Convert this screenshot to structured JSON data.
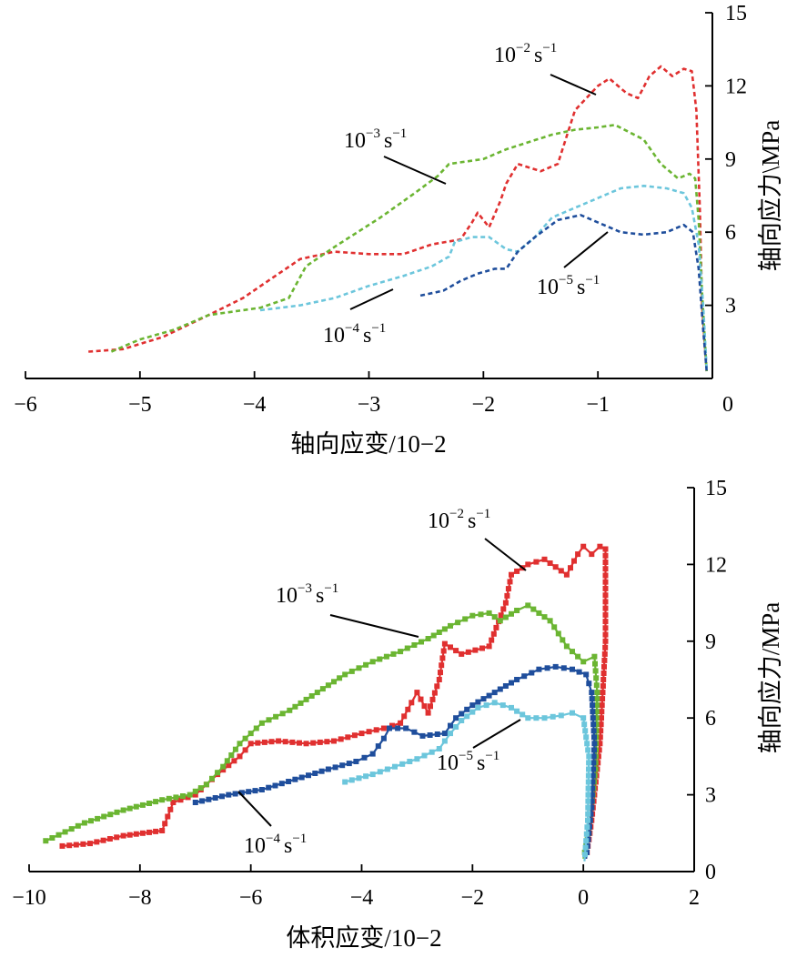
{
  "chart_data": [
    {
      "type": "line",
      "xlabel": "轴向应变/10−2",
      "ylabel": "轴向应力\\MPa",
      "xlim": [
        -6,
        0
      ],
      "ylim": [
        0,
        15
      ],
      "x_ticks": [
        "−6",
        "−5",
        "−4",
        "−3",
        "−2",
        "−1",
        "0"
      ],
      "y_ticks": [
        "3",
        "6",
        "9",
        "12",
        "15"
      ],
      "x_tick_values": [
        -6,
        -5,
        -4,
        -3,
        -2,
        -1,
        0
      ],
      "y_tick_values": [
        3,
        6,
        9,
        12,
        15
      ],
      "y_axis_position": "right",
      "line_style": "dashed",
      "series": [
        {
          "name": "10−2 s−1",
          "base": "10",
          "exp": "−2",
          "unit": "s",
          "unit_exp": "−1",
          "color": "#e03030",
          "points": [
            [
              -5.45,
              1.1
            ],
            [
              -5.15,
              1.2
            ],
            [
              -4.8,
              1.7
            ],
            [
              -4.4,
              2.6
            ],
            [
              -4.1,
              3.3
            ],
            [
              -3.85,
              4.1
            ],
            [
              -3.6,
              4.9
            ],
            [
              -3.3,
              5.2
            ],
            [
              -3.0,
              5.1
            ],
            [
              -2.7,
              5.1
            ],
            [
              -2.45,
              5.5
            ],
            [
              -2.2,
              5.7
            ],
            [
              -2.1,
              6.4
            ],
            [
              -2.05,
              6.8
            ],
            [
              -1.95,
              6.2
            ],
            [
              -1.85,
              7.3
            ],
            [
              -1.8,
              8.0
            ],
            [
              -1.7,
              8.8
            ],
            [
              -1.5,
              8.5
            ],
            [
              -1.35,
              8.8
            ],
            [
              -1.2,
              11.0
            ],
            [
              -1.0,
              12.0
            ],
            [
              -0.9,
              12.3
            ],
            [
              -0.75,
              11.7
            ],
            [
              -0.65,
              11.5
            ],
            [
              -0.55,
              12.4
            ],
            [
              -0.45,
              12.8
            ],
            [
              -0.35,
              12.4
            ],
            [
              -0.25,
              12.7
            ],
            [
              -0.18,
              12.6
            ],
            [
              -0.14,
              11.0
            ],
            [
              -0.11,
              7.0
            ],
            [
              -0.09,
              3.0
            ],
            [
              -0.05,
              0.3
            ]
          ]
        },
        {
          "name": "10−3 s−1",
          "base": "10",
          "exp": "−3",
          "unit": "s",
          "unit_exp": "−1",
          "color": "#6bb532",
          "points": [
            [
              -5.25,
              1.1
            ],
            [
              -5.0,
              1.6
            ],
            [
              -4.7,
              2.0
            ],
            [
              -4.4,
              2.6
            ],
            [
              -3.95,
              2.9
            ],
            [
              -3.7,
              3.3
            ],
            [
              -3.55,
              4.6
            ],
            [
              -3.3,
              5.4
            ],
            [
              -2.9,
              6.6
            ],
            [
              -2.6,
              7.6
            ],
            [
              -2.4,
              8.3
            ],
            [
              -2.3,
              8.8
            ],
            [
              -2.0,
              9.0
            ],
            [
              -1.8,
              9.4
            ],
            [
              -1.6,
              9.7
            ],
            [
              -1.4,
              10.0
            ],
            [
              -1.2,
              10.2
            ],
            [
              -1.0,
              10.3
            ],
            [
              -0.85,
              10.4
            ],
            [
              -0.6,
              9.8
            ],
            [
              -0.45,
              8.8
            ],
            [
              -0.3,
              8.2
            ],
            [
              -0.2,
              8.4
            ],
            [
              -0.15,
              8.2
            ],
            [
              -0.12,
              6.5
            ],
            [
              -0.09,
              3.5
            ],
            [
              -0.05,
              0.3
            ]
          ]
        },
        {
          "name": "10−4 s−1",
          "base": "10",
          "exp": "−4",
          "unit": "s",
          "unit_exp": "−1",
          "color": "#6cc6dc",
          "points": [
            [
              -3.95,
              2.8
            ],
            [
              -3.6,
              3.0
            ],
            [
              -3.3,
              3.3
            ],
            [
              -3.0,
              3.8
            ],
            [
              -2.7,
              4.2
            ],
            [
              -2.45,
              4.6
            ],
            [
              -2.3,
              5.0
            ],
            [
              -2.25,
              5.6
            ],
            [
              -2.1,
              5.8
            ],
            [
              -1.95,
              5.8
            ],
            [
              -1.8,
              5.3
            ],
            [
              -1.7,
              5.2
            ],
            [
              -1.55,
              5.8
            ],
            [
              -1.4,
              6.6
            ],
            [
              -1.2,
              7.0
            ],
            [
              -1.0,
              7.4
            ],
            [
              -0.8,
              7.8
            ],
            [
              -0.6,
              7.9
            ],
            [
              -0.4,
              7.8
            ],
            [
              -0.25,
              7.6
            ],
            [
              -0.18,
              7.0
            ],
            [
              -0.12,
              5.5
            ],
            [
              -0.08,
              3.0
            ],
            [
              -0.05,
              0.4
            ]
          ]
        },
        {
          "name": "10−5 s−1",
          "base": "10",
          "exp": "−5",
          "unit": "s",
          "unit_exp": "−1",
          "color": "#1f4e9c",
          "points": [
            [
              -2.55,
              3.4
            ],
            [
              -2.35,
              3.6
            ],
            [
              -2.2,
              4.0
            ],
            [
              -2.05,
              4.3
            ],
            [
              -1.9,
              4.5
            ],
            [
              -1.8,
              4.5
            ],
            [
              -1.7,
              5.2
            ],
            [
              -1.55,
              5.8
            ],
            [
              -1.35,
              6.5
            ],
            [
              -1.15,
              6.7
            ],
            [
              -0.95,
              6.3
            ],
            [
              -0.8,
              6.0
            ],
            [
              -0.6,
              5.9
            ],
            [
              -0.4,
              6.0
            ],
            [
              -0.25,
              6.3
            ],
            [
              -0.17,
              6.0
            ],
            [
              -0.12,
              4.5
            ],
            [
              -0.08,
              2.0
            ],
            [
              -0.05,
              0.3
            ]
          ]
        }
      ]
    },
    {
      "type": "line",
      "xlabel": "体积应变/10−2",
      "ylabel": "轴向应力/MPa",
      "xlim": [
        -10,
        2
      ],
      "ylim": [
        0,
        15
      ],
      "x_ticks": [
        "−10",
        "−8",
        "−6",
        "−4",
        "−2",
        "0",
        "2"
      ],
      "y_ticks": [
        "0",
        "3",
        "6",
        "9",
        "12",
        "15"
      ],
      "x_tick_values": [
        -10,
        -8,
        -6,
        -4,
        -2,
        0,
        2
      ],
      "y_tick_values": [
        0,
        3,
        6,
        9,
        12,
        15
      ],
      "y_axis_position": "right",
      "line_style": "solid-with-square-markers",
      "series": [
        {
          "name": "10−2 s−1",
          "base": "10",
          "exp": "−2",
          "unit": "s",
          "unit_exp": "−1",
          "color": "#e03030",
          "points": [
            [
              -9.4,
              1.0
            ],
            [
              -8.9,
              1.1
            ],
            [
              -8.3,
              1.4
            ],
            [
              -7.6,
              1.6
            ],
            [
              -7.4,
              2.7
            ],
            [
              -7.0,
              3.0
            ],
            [
              -6.6,
              3.8
            ],
            [
              -6.2,
              4.5
            ],
            [
              -6.0,
              5.0
            ],
            [
              -5.5,
              5.1
            ],
            [
              -5.0,
              5.0
            ],
            [
              -4.5,
              5.1
            ],
            [
              -4.0,
              5.4
            ],
            [
              -3.6,
              5.6
            ],
            [
              -3.3,
              5.8
            ],
            [
              -3.1,
              6.6
            ],
            [
              -3.0,
              7.0
            ],
            [
              -2.8,
              6.2
            ],
            [
              -2.6,
              7.5
            ],
            [
              -2.5,
              8.9
            ],
            [
              -2.2,
              8.5
            ],
            [
              -1.7,
              8.8
            ],
            [
              -1.4,
              10.5
            ],
            [
              -1.3,
              11.6
            ],
            [
              -1.0,
              12.0
            ],
            [
              -0.7,
              12.2
            ],
            [
              -0.3,
              11.6
            ],
            [
              -0.1,
              12.4
            ],
            [
              0.0,
              12.7
            ],
            [
              0.15,
              12.4
            ],
            [
              0.3,
              12.7
            ],
            [
              0.4,
              12.6
            ],
            [
              0.4,
              9.0
            ],
            [
              0.3,
              5.0
            ],
            [
              0.15,
              2.0
            ],
            [
              0.05,
              0.5
            ]
          ]
        },
        {
          "name": "10−3 s−1",
          "base": "10",
          "exp": "−3",
          "unit": "s",
          "unit_exp": "−1",
          "color": "#6bb532",
          "points": [
            [
              -9.7,
              1.2
            ],
            [
              -9.0,
              1.9
            ],
            [
              -8.3,
              2.4
            ],
            [
              -7.6,
              2.8
            ],
            [
              -7.1,
              3.0
            ],
            [
              -6.8,
              3.4
            ],
            [
              -6.5,
              4.1
            ],
            [
              -6.2,
              5.0
            ],
            [
              -5.8,
              5.8
            ],
            [
              -5.3,
              6.3
            ],
            [
              -4.8,
              7.0
            ],
            [
              -4.3,
              7.7
            ],
            [
              -3.8,
              8.2
            ],
            [
              -3.3,
              8.6
            ],
            [
              -2.8,
              9.1
            ],
            [
              -2.4,
              9.6
            ],
            [
              -2.0,
              10.0
            ],
            [
              -1.7,
              10.1
            ],
            [
              -1.5,
              9.8
            ],
            [
              -1.2,
              10.2
            ],
            [
              -1.0,
              10.4
            ],
            [
              -0.6,
              9.8
            ],
            [
              -0.3,
              8.8
            ],
            [
              0.0,
              8.2
            ],
            [
              0.2,
              8.4
            ],
            [
              0.25,
              7.0
            ],
            [
              0.22,
              4.0
            ],
            [
              0.1,
              1.5
            ],
            [
              0.0,
              0.5
            ]
          ]
        },
        {
          "name": "10−4 s−1",
          "base": "10",
          "exp": "−4",
          "unit": "s",
          "unit_exp": "−1",
          "color": "#1f4e9c",
          "points": [
            [
              -7.0,
              2.7
            ],
            [
              -6.4,
              3.0
            ],
            [
              -5.8,
              3.2
            ],
            [
              -5.2,
              3.6
            ],
            [
              -4.6,
              4.0
            ],
            [
              -4.1,
              4.3
            ],
            [
              -3.8,
              4.6
            ],
            [
              -3.6,
              5.2
            ],
            [
              -3.5,
              5.6
            ],
            [
              -3.2,
              5.6
            ],
            [
              -2.9,
              5.3
            ],
            [
              -2.5,
              5.4
            ],
            [
              -2.3,
              6.0
            ],
            [
              -2.0,
              6.5
            ],
            [
              -1.6,
              7.0
            ],
            [
              -1.2,
              7.5
            ],
            [
              -0.8,
              7.9
            ],
            [
              -0.5,
              8.0
            ],
            [
              -0.2,
              7.9
            ],
            [
              0.05,
              7.7
            ],
            [
              0.15,
              7.0
            ],
            [
              0.2,
              5.0
            ],
            [
              0.15,
              2.5
            ],
            [
              0.05,
              0.5
            ]
          ]
        },
        {
          "name": "10−5 s−1",
          "base": "10",
          "exp": "−5",
          "unit": "s",
          "unit_exp": "−1",
          "color": "#6cc6dc",
          "points": [
            [
              -4.3,
              3.5
            ],
            [
              -3.8,
              3.8
            ],
            [
              -3.4,
              4.1
            ],
            [
              -3.0,
              4.4
            ],
            [
              -2.6,
              4.8
            ],
            [
              -2.4,
              5.4
            ],
            [
              -2.2,
              5.9
            ],
            [
              -1.9,
              6.4
            ],
            [
              -1.6,
              6.6
            ],
            [
              -1.3,
              6.4
            ],
            [
              -1.0,
              6.0
            ],
            [
              -0.7,
              6.0
            ],
            [
              -0.4,
              6.1
            ],
            [
              -0.2,
              6.2
            ],
            [
              0.0,
              6.0
            ],
            [
              0.1,
              4.5
            ],
            [
              0.08,
              2.0
            ],
            [
              0.02,
              0.4
            ]
          ]
        }
      ]
    }
  ]
}
